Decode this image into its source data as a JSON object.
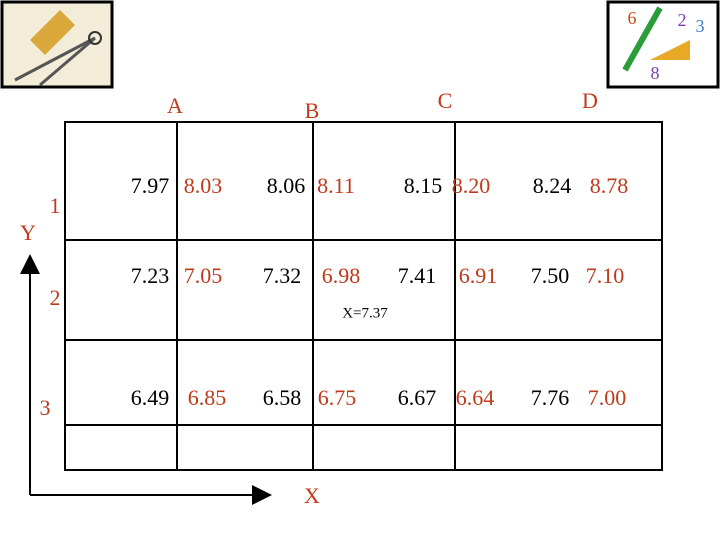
{
  "table": {
    "columns": [
      "A",
      "B",
      "C",
      "D"
    ],
    "row_labels": [
      "1",
      "2",
      "3"
    ],
    "y_axis_label": "Y",
    "x_axis_label": "X",
    "annotation": "X=7.37",
    "rows": [
      [
        [
          "7.97",
          "8.03"
        ],
        [
          "8.06",
          "8.11"
        ],
        [
          "8.15",
          "8.20"
        ],
        [
          "8.24",
          "8.78"
        ]
      ],
      [
        [
          "7.23",
          "7.05"
        ],
        [
          "7.32",
          "6.98"
        ],
        [
          "7.41",
          "6.91"
        ],
        [
          "7.50",
          "7.10"
        ]
      ],
      [
        [
          "6.49",
          "6.85"
        ],
        [
          "6.58",
          "6.75"
        ],
        [
          "6.67",
          "6.64"
        ],
        [
          "7.76",
          "7.00"
        ]
      ]
    ]
  }
}
